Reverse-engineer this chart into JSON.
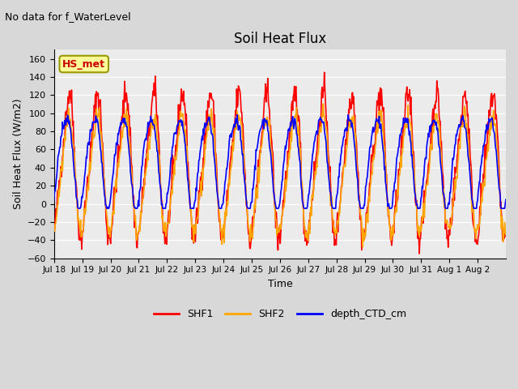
{
  "title": "Soil Heat Flux",
  "suptitle": "No data for f_WaterLevel",
  "ylabel": "Soil Heat Flux (W/m2)",
  "xlabel": "Time",
  "ylim": [
    -60,
    170
  ],
  "yticks": [
    -60,
    -40,
    -20,
    0,
    20,
    40,
    60,
    80,
    100,
    120,
    140,
    160
  ],
  "series_colors": {
    "SHF1": "#ff0000",
    "SHF2": "#ffa500",
    "depth_CTD_cm": "#0000ff"
  },
  "legend_labels": [
    "SHF1",
    "SHF2",
    "depth_CTD_cm"
  ],
  "hs_met_label": "HS_met",
  "hs_met_color": "#cc0000",
  "hs_met_bg": "#ffff99",
  "fig_bg": "#d8d8d8",
  "plot_bg": "#ebebeb",
  "tick_labels": [
    "Jul 18",
    "Jul 19",
    "Jul 20",
    "Jul 21",
    "Jul 22",
    "Jul 23",
    "Jul 24",
    "Jul 25",
    "Jul 26",
    "Jul 27",
    "Jul 28",
    "Jul 29",
    "Jul 30",
    "Jul 31",
    "Aug 1",
    "Aug 2"
  ],
  "n_points": 800,
  "linewidth": 1.2
}
